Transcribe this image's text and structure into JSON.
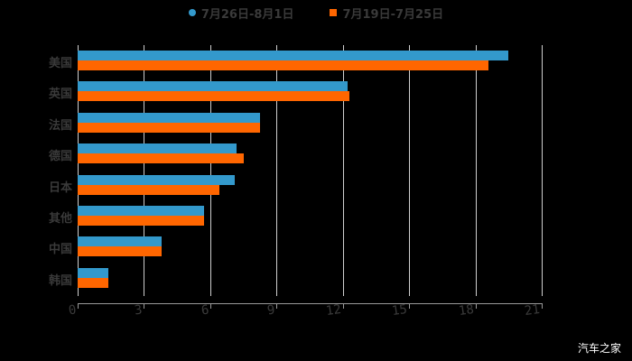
{
  "chart_data": {
    "type": "bar",
    "orientation": "horizontal",
    "title": "",
    "xlabel": "",
    "ylabel": "",
    "categories": [
      "美国",
      "英国",
      "法国",
      "德国",
      "日本",
      "其他",
      "中国",
      "韩国"
    ],
    "series": [
      {
        "name": "7月26日-8月1日",
        "color": "#3399cc",
        "values": [
          19.5,
          12.2,
          8.25,
          7.2,
          7.1,
          5.7,
          3.8,
          1.4
        ]
      },
      {
        "name": "7月19日-7月25日",
        "color": "#ff6600",
        "values": [
          18.6,
          12.3,
          8.25,
          7.5,
          6.4,
          5.7,
          3.8,
          1.4
        ]
      }
    ],
    "xlim": [
      0,
      21
    ],
    "xticks": [
      "0",
      "3",
      "6",
      "9",
      "12",
      "15",
      "18",
      "21"
    ],
    "grid": true,
    "legend_position": "top"
  },
  "legend": {
    "items": [
      {
        "label": "7月26日-8月1日",
        "color": "#3399cc",
        "marker": "circle"
      },
      {
        "label": "7月19日-7月25日",
        "color": "#ff6600",
        "marker": "square"
      }
    ]
  },
  "watermark": "汽车之家"
}
